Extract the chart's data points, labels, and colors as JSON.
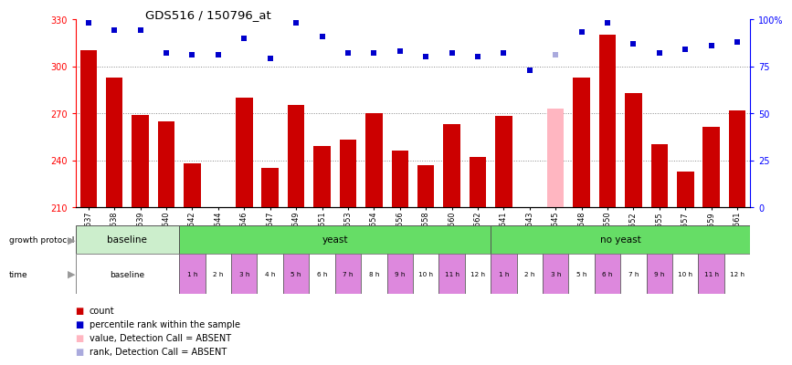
{
  "title": "GDS516 / 150796_at",
  "samples": [
    "GSM8537",
    "GSM8538",
    "GSM8539",
    "GSM8540",
    "GSM8542",
    "GSM8544",
    "GSM8546",
    "GSM8547",
    "GSM8549",
    "GSM8551",
    "GSM8553",
    "GSM8554",
    "GSM8556",
    "GSM8558",
    "GSM8560",
    "GSM8562",
    "GSM8541",
    "GSM8543",
    "GSM8545",
    "GSM8548",
    "GSM8550",
    "GSM8552",
    "GSM8555",
    "GSM8557",
    "GSM8559",
    "GSM8561"
  ],
  "counts": [
    310,
    293,
    269,
    265,
    238,
    210,
    280,
    235,
    275,
    249,
    253,
    270,
    246,
    237,
    263,
    242,
    268,
    210,
    273,
    293,
    320,
    283,
    250,
    233,
    261,
    272
  ],
  "absent_count": [
    false,
    false,
    false,
    false,
    false,
    true,
    false,
    false,
    false,
    false,
    false,
    false,
    false,
    false,
    false,
    false,
    false,
    true,
    true,
    false,
    false,
    false,
    false,
    false,
    false,
    false
  ],
  "ranks": [
    98,
    94,
    94,
    82,
    81,
    81,
    90,
    79,
    98,
    91,
    82,
    82,
    83,
    80,
    82,
    80,
    82,
    73,
    81,
    93,
    98,
    87,
    82,
    84,
    86,
    88
  ],
  "absent_rank": [
    false,
    false,
    false,
    false,
    false,
    false,
    false,
    false,
    false,
    false,
    false,
    false,
    false,
    false,
    false,
    false,
    false,
    false,
    true,
    false,
    false,
    false,
    false,
    false,
    false,
    false
  ],
  "ylim_left": [
    210,
    330
  ],
  "ylim_right": [
    0,
    100
  ],
  "yticks_left": [
    210,
    240,
    270,
    300,
    330
  ],
  "yticks_right": [
    0,
    25,
    50,
    75,
    100
  ],
  "bar_color_present": "#cc0000",
  "bar_color_absent": "#ffb6c1",
  "dot_color_present": "#0000cc",
  "dot_color_absent": "#aaaadd",
  "group_baseline_color": "#cceecc",
  "group_yeast_color": "#66dd66",
  "time_color_odd": "#dd88dd",
  "time_color_even": "#ffffff",
  "time_labels_yeast": [
    "1 h",
    "2 h",
    "3 h",
    "4 h",
    "5 h",
    "6 h",
    "7 h",
    "8 h",
    "9 h",
    "10 h",
    "11 h",
    "12 h"
  ],
  "time_labels_no_yeast": [
    "1 h",
    "2 h",
    "3 h",
    "5 h",
    "6 h",
    "7 h",
    "9 h",
    "10 h",
    "11 h",
    "12 h"
  ],
  "legend_items": [
    {
      "label": "count",
      "color": "#cc0000"
    },
    {
      "label": "percentile rank within the sample",
      "color": "#0000cc"
    },
    {
      "label": "value, Detection Call = ABSENT",
      "color": "#ffb6c1"
    },
    {
      "label": "rank, Detection Call = ABSENT",
      "color": "#aaaadd"
    }
  ]
}
